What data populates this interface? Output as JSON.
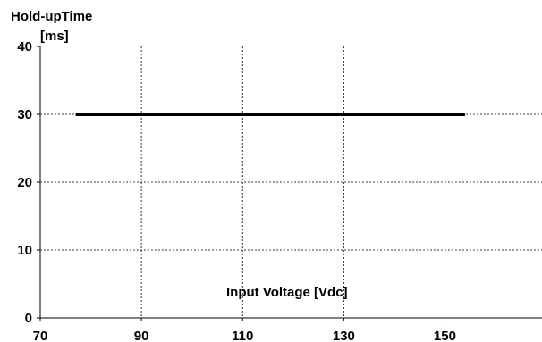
{
  "chart_data": {
    "type": "line",
    "title": "",
    "ylabel_line1": "Hold-upTime",
    "ylabel_line2": "[ms]",
    "xlabel": "Input Voltage [Vdc]",
    "xlim": [
      70,
      160
    ],
    "ylim": [
      0,
      40
    ],
    "x_ticks": [
      70,
      90,
      110,
      130,
      150
    ],
    "y_ticks": [
      0,
      10,
      20,
      30,
      40
    ],
    "x_gridlines": [
      90,
      110,
      130,
      150
    ],
    "y_gridlines": [
      10,
      20,
      30
    ],
    "grid": true,
    "grid_style": "dashed",
    "series": [
      {
        "x": [
          77,
          154
        ],
        "y": [
          30,
          30
        ],
        "color": "#000000"
      }
    ]
  }
}
